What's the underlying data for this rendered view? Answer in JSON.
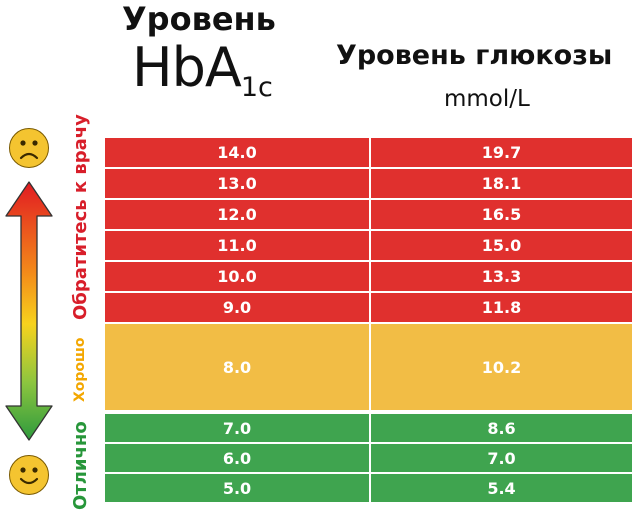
{
  "header": {
    "hba_title": "Уровень",
    "hba_main": "HbA",
    "hba_sub": "1c",
    "glucose_title": "Уровень глюкозы",
    "glucose_unit": "mmol/L"
  },
  "side_labels": {
    "doctor": "Обратитесь к врачу",
    "good": "Хорошо",
    "excellent": "Отлично"
  },
  "colors": {
    "red": "#e0302e",
    "yellow": "#f2bd45",
    "green": "#3fa44f",
    "label_red": "#d81e2a",
    "label_yellow": "#f3a700",
    "label_green": "#27963a"
  },
  "rows": [
    {
      "hba1c": "14.0",
      "glucose": "19.7",
      "zone": "red"
    },
    {
      "hba1c": "13.0",
      "glucose": "18.1",
      "zone": "red"
    },
    {
      "hba1c": "12.0",
      "glucose": "16.5",
      "zone": "red"
    },
    {
      "hba1c": "11.0",
      "glucose": "15.0",
      "zone": "red"
    },
    {
      "hba1c": "10.0",
      "glucose": "13.3",
      "zone": "red"
    },
    {
      "hba1c": "9.0",
      "glucose": "11.8",
      "zone": "red"
    },
    {
      "hba1c": "8.0",
      "glucose": "10.2",
      "zone": "yellow"
    },
    {
      "hba1c": "7.0",
      "glucose": "8.6",
      "zone": "green"
    },
    {
      "hba1c": "6.0",
      "glucose": "7.0",
      "zone": "green"
    },
    {
      "hba1c": "5.0",
      "glucose": "5.4",
      "zone": "green"
    }
  ],
  "icons": {
    "top": "sad-face-icon",
    "bottom": "happy-face-icon",
    "arrow": "double-arrow-icon"
  }
}
